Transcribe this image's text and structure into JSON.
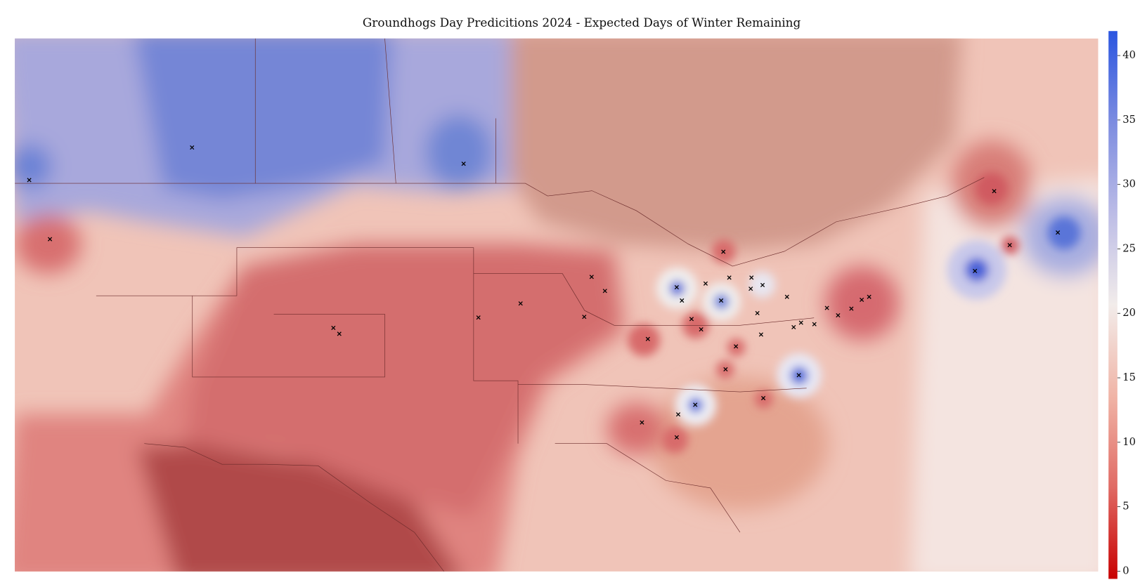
{
  "chart_data": {
    "type": "contour-map",
    "title": "Groundhogs Day Predicitions 2024 - Expected Days of Winter Remaining",
    "colorbar": {
      "lim": [
        -0.6,
        41.9
      ],
      "ticks": [
        0,
        5,
        10,
        15,
        20,
        25,
        30,
        35,
        40
      ],
      "colors": [
        "#c80000",
        "#e06a64",
        "#f0b4a6",
        "#f2ecea",
        "#bcbce6",
        "#7c8ce0",
        "#2a55e0"
      ]
    }
  }
}
